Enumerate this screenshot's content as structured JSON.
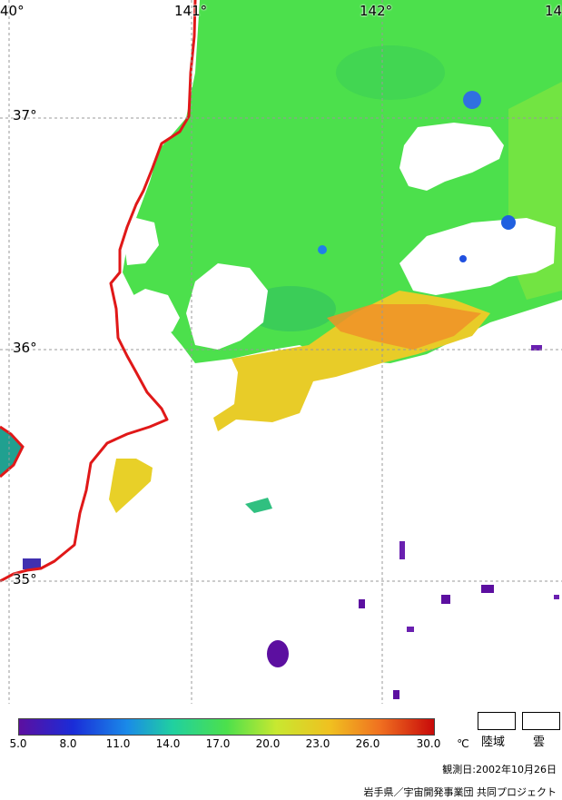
{
  "map": {
    "lon_labels": [
      "40°",
      "141°",
      "142°",
      "14"
    ],
    "lat_labels": [
      "37°",
      "36°",
      "35°"
    ],
    "coast_color": "#e01818",
    "graticule_color": "#999999"
  },
  "colorbar": {
    "ticks": [
      "5.0",
      "8.0",
      "11.0",
      "14.0",
      "17.0",
      "20.0",
      "23.0",
      "26.0",
      "30.0"
    ],
    "unit": "℃",
    "colors": [
      "#5c0fa0",
      "#1a2cd8",
      "#1a8ae8",
      "#20d0a0",
      "#4ce04c",
      "#c8e830",
      "#f0c020",
      "#f07020",
      "#c80a0a"
    ]
  },
  "legend": {
    "land_label": "陸域",
    "cloud_label": "雲"
  },
  "footer": {
    "date": "観測日:2002年10月26日",
    "credit": "岩手県／宇宙開発事業団 共同プロジェクト"
  }
}
